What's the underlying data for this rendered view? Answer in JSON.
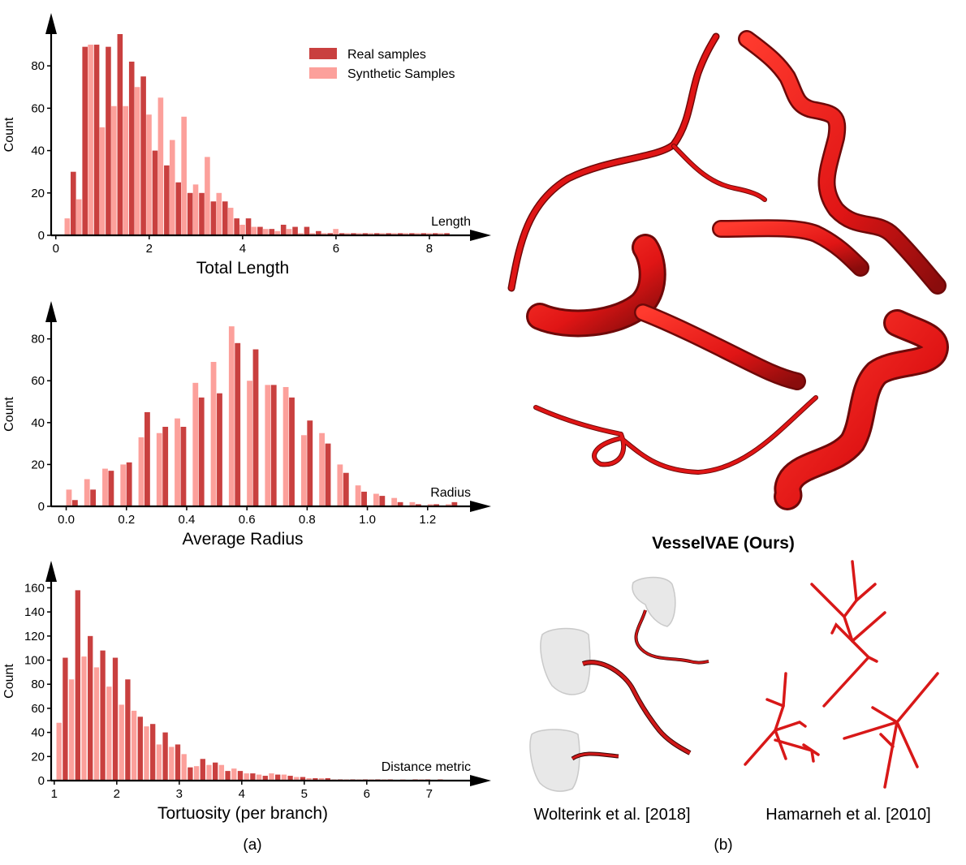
{
  "legend": {
    "real_label": "Real samples",
    "synthetic_label": "Synthetic Samples"
  },
  "colors": {
    "real": "#c9403f",
    "synthetic": "#fca09b",
    "vessel": "#e01515",
    "vessel_dark": "#7a0a0a",
    "mesh": "#e6e6e6",
    "axis": "#000000"
  },
  "panel_labels": {
    "a": "(a)",
    "b": "(b)"
  },
  "right_panel": {
    "ours_label": "VesselVAE (Ours)",
    "wolterink_label": "Wolterink et al. [2018]",
    "hamarneh_label": "Hamarneh et al. [2010]"
  },
  "chart_data": [
    {
      "type": "bar",
      "title": "",
      "xlabel": "Total Length",
      "axis_end_label": "Length",
      "ylabel": "Count",
      "xlim": [
        -0.1,
        8.8
      ],
      "ylim": [
        0,
        95
      ],
      "xticks": [
        0,
        2,
        4,
        6,
        8
      ],
      "yticks": [
        0,
        20,
        40,
        60,
        80
      ],
      "bin_width": 0.125,
      "legend": "top-right",
      "series": [
        {
          "name": "Real samples",
          "x": [
            0.38,
            0.63,
            0.88,
            1.13,
            1.38,
            1.63,
            1.88,
            2.13,
            2.38,
            2.63,
            2.88,
            3.13,
            3.38,
            3.63,
            3.88,
            4.13,
            4.38,
            4.63,
            4.88,
            5.13,
            5.38,
            5.63,
            5.88,
            6.13,
            6.38,
            6.63,
            6.88,
            7.13,
            7.38,
            7.63,
            7.88,
            8.13,
            8.38
          ],
          "values": [
            30,
            89,
            90,
            89,
            95,
            82,
            75,
            40,
            33,
            25,
            20,
            20,
            16,
            16,
            8,
            8,
            4,
            3,
            5,
            4,
            4,
            2,
            1,
            1,
            1,
            1,
            1,
            1,
            1,
            1,
            1,
            1,
            1
          ]
        },
        {
          "name": "Synthetic Samples",
          "x": [
            0.25,
            0.5,
            0.75,
            1.0,
            1.25,
            1.5,
            1.75,
            2.0,
            2.25,
            2.5,
            2.75,
            3.0,
            3.25,
            3.5,
            3.75,
            4.0,
            4.25,
            4.5,
            4.75,
            5.0,
            5.25,
            5.5,
            5.75,
            6.0,
            6.25,
            6.5,
            6.75,
            7.0,
            7.25,
            7.5,
            7.75,
            8.0,
            8.25
          ],
          "values": [
            8,
            17,
            90,
            51,
            61,
            61,
            70,
            57,
            65,
            45,
            56,
            24,
            37,
            20,
            13,
            5,
            4,
            3,
            2,
            3,
            1,
            1,
            1,
            3,
            1,
            1,
            1,
            1,
            1,
            1,
            1,
            1,
            1
          ]
        }
      ]
    },
    {
      "type": "bar",
      "title": "",
      "xlabel": "Average Radius",
      "axis_end_label": "Radius",
      "ylabel": "Count",
      "xlim": [
        -0.05,
        1.33
      ],
      "ylim": [
        0,
        88
      ],
      "xticks": [
        0.0,
        0.2,
        0.4,
        0.6,
        0.8,
        1.0,
        1.2
      ],
      "yticks": [
        0,
        20,
        40,
        60,
        80
      ],
      "bin_width": 0.02,
      "legend": "",
      "series": [
        {
          "name": "Real samples",
          "x": [
            0.03,
            0.09,
            0.15,
            0.21,
            0.27,
            0.33,
            0.39,
            0.45,
            0.51,
            0.57,
            0.63,
            0.69,
            0.75,
            0.81,
            0.87,
            0.93,
            0.99,
            1.05,
            1.11,
            1.17,
            1.23,
            1.29
          ],
          "values": [
            3,
            8,
            17,
            21,
            45,
            38,
            38,
            52,
            54,
            78,
            75,
            58,
            52,
            41,
            30,
            16,
            7,
            5,
            2,
            1,
            1,
            2
          ]
        },
        {
          "name": "Synthetic Samples",
          "x": [
            0.01,
            0.07,
            0.13,
            0.19,
            0.25,
            0.31,
            0.37,
            0.43,
            0.49,
            0.55,
            0.61,
            0.67,
            0.73,
            0.79,
            0.85,
            0.91,
            0.97,
            1.03,
            1.09,
            1.15,
            1.21,
            1.27
          ],
          "values": [
            8,
            13,
            18,
            20,
            33,
            35,
            42,
            59,
            69,
            86,
            60,
            58,
            57,
            34,
            35,
            20,
            10,
            6,
            4,
            2,
            1,
            1
          ]
        }
      ]
    },
    {
      "type": "bar",
      "title": "",
      "xlabel": "Tortuosity (per branch)",
      "axis_end_label": "Distance metric",
      "ylabel": "Count",
      "xlim": [
        0.95,
        7.6
      ],
      "ylim": [
        0,
        165
      ],
      "xticks": [
        1,
        2,
        3,
        4,
        5,
        6,
        7
      ],
      "yticks": [
        0,
        20,
        40,
        60,
        80,
        100,
        120,
        140,
        160
      ],
      "bin_width": 0.09,
      "legend": "",
      "series": [
        {
          "name": "Real samples",
          "x": [
            1.18,
            1.38,
            1.58,
            1.78,
            1.98,
            2.18,
            2.38,
            2.58,
            2.78,
            2.98,
            3.18,
            3.38,
            3.58,
            3.78,
            3.98,
            4.18,
            4.38,
            4.58,
            4.78,
            4.98,
            5.18,
            5.38,
            5.58,
            5.78,
            5.98,
            6.18,
            6.38,
            6.58,
            6.78,
            6.98,
            7.18
          ],
          "values": [
            102,
            158,
            120,
            108,
            102,
            84,
            53,
            47,
            40,
            30,
            11,
            18,
            15,
            8,
            8,
            6,
            4,
            5,
            4,
            3,
            2,
            2,
            1,
            1,
            1,
            1,
            1,
            1,
            1,
            1,
            1
          ]
        },
        {
          "name": "Synthetic Samples",
          "x": [
            1.08,
            1.28,
            1.48,
            1.68,
            1.88,
            2.08,
            2.28,
            2.48,
            2.68,
            2.88,
            3.08,
            3.28,
            3.48,
            3.68,
            3.88,
            4.08,
            4.28,
            4.48,
            4.68,
            4.88,
            5.08,
            5.28,
            5.48,
            5.68,
            5.88,
            6.08,
            6.28,
            6.58,
            6.88
          ],
          "values": [
            48,
            84,
            103,
            94,
            78,
            63,
            58,
            45,
            30,
            28,
            22,
            12,
            13,
            13,
            10,
            6,
            5,
            6,
            5,
            3,
            2,
            2,
            1,
            1,
            1,
            1,
            1,
            1,
            1
          ]
        }
      ]
    }
  ]
}
